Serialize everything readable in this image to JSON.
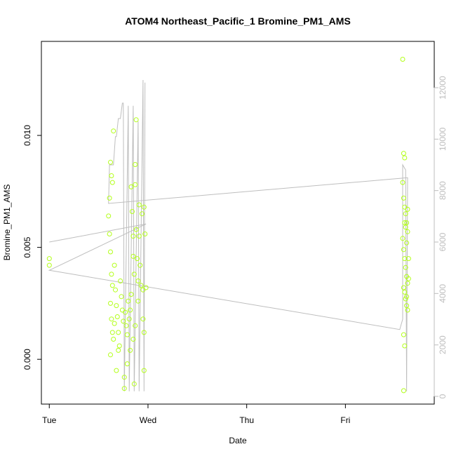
{
  "chart_data": {
    "type": "scatter",
    "title": "ATOM4 Northeast_Pacific_1 Bromine_PM1_AMS",
    "xlabel": "Date",
    "ylabel": "Bromine_PM1_AMS",
    "x_tick_labels": [
      "Tue",
      "Wed",
      "Thu",
      "Fri"
    ],
    "x_range_days": [
      -0.08,
      3.9
    ],
    "ylim": [
      -0.002,
      0.0142
    ],
    "y_ticks": [
      0.0,
      0.005,
      0.01
    ],
    "y_tick_labels": [
      "0.000",
      "0.005",
      "0.010"
    ],
    "y2lim": [
      -300,
      13800
    ],
    "y2_ticks": [
      0,
      2000,
      4000,
      6000,
      8000,
      10000,
      12000
    ],
    "grid": false,
    "legend": "none",
    "colors": {
      "points": "#b3ff1a",
      "line": "#bebebe",
      "frame": "#000000",
      "right_axis": "#bdbdbd"
    },
    "series": [
      {
        "type": "scatter",
        "axis": "left",
        "points": [
          [
            0.0,
            0.0045
          ],
          [
            0.0,
            0.0042
          ],
          [
            0.6,
            0.0064
          ],
          [
            0.61,
            0.0072
          ],
          [
            0.62,
            0.0088
          ],
          [
            0.63,
            0.0082
          ],
          [
            0.64,
            0.0079
          ],
          [
            0.65,
            0.0102
          ],
          [
            0.61,
            0.0056
          ],
          [
            0.62,
            0.0048
          ],
          [
            0.63,
            0.0038
          ],
          [
            0.64,
            0.0033
          ],
          [
            0.62,
            0.0025
          ],
          [
            0.63,
            0.0018
          ],
          [
            0.64,
            0.0012
          ],
          [
            0.65,
            0.0009
          ],
          [
            0.62,
            0.0002
          ],
          [
            0.66,
            0.0042
          ],
          [
            0.67,
            0.0031
          ],
          [
            0.68,
            0.0024
          ],
          [
            0.69,
            0.0019
          ],
          [
            0.7,
            0.0012
          ],
          [
            0.71,
            0.0006
          ],
          [
            0.68,
            -0.0005
          ],
          [
            0.72,
            0.0035
          ],
          [
            0.73,
            0.0028
          ],
          [
            0.74,
            0.0022
          ],
          [
            0.75,
            0.0017
          ],
          [
            0.76,
            -0.0013
          ],
          [
            0.76,
            -0.0008
          ],
          [
            0.77,
            0.0021
          ],
          [
            0.78,
            0.0015
          ],
          [
            0.79,
            0.0011
          ],
          [
            0.8,
            0.0026
          ],
          [
            0.81,
            0.0018
          ],
          [
            0.82,
            0.0022
          ],
          [
            0.83,
            0.0029
          ],
          [
            0.83,
            0.0077
          ],
          [
            0.84,
            0.0066
          ],
          [
            0.85,
            0.0055
          ],
          [
            0.85,
            0.0046
          ],
          [
            0.86,
            0.0038
          ],
          [
            0.86,
            -0.0011
          ],
          [
            0.87,
            0.0078
          ],
          [
            0.87,
            0.0087
          ],
          [
            0.88,
            0.0107
          ],
          [
            0.88,
            0.0058
          ],
          [
            0.89,
            0.0045
          ],
          [
            0.9,
            0.0035
          ],
          [
            0.9,
            0.0026
          ],
          [
            0.91,
            0.0069
          ],
          [
            0.91,
            0.0055
          ],
          [
            0.92,
            0.0042
          ],
          [
            0.93,
            0.0033
          ],
          [
            0.94,
            0.0065
          ],
          [
            0.95,
            0.0031
          ],
          [
            0.95,
            0.0018
          ],
          [
            0.96,
            0.0012
          ],
          [
            0.96,
            0.0068
          ],
          [
            0.97,
            0.0056
          ],
          [
            0.98,
            0.0032
          ],
          [
            0.96,
            -0.0005
          ],
          [
            0.87,
            0.0015
          ],
          [
            0.85,
            0.0009
          ],
          [
            0.82,
            0.0004
          ],
          [
            0.79,
            -0.0002
          ],
          [
            0.7,
            0.0004
          ],
          [
            0.66,
            0.0016
          ],
          [
            3.58,
            0.0134
          ],
          [
            3.59,
            0.0092
          ],
          [
            3.6,
            0.009
          ],
          [
            3.58,
            0.0079
          ],
          [
            3.59,
            0.0072
          ],
          [
            3.6,
            0.0068
          ],
          [
            3.61,
            0.0065
          ],
          [
            3.62,
            0.0061
          ],
          [
            3.63,
            0.0057
          ],
          [
            3.58,
            0.0054
          ],
          [
            3.59,
            0.0049
          ],
          [
            3.6,
            0.0045
          ],
          [
            3.61,
            0.0041
          ],
          [
            3.62,
            0.0037
          ],
          [
            3.63,
            0.0034
          ],
          [
            3.59,
            0.0032
          ],
          [
            3.6,
            0.003
          ],
          [
            3.61,
            0.0027
          ],
          [
            3.62,
            0.0024
          ],
          [
            3.63,
            0.0022
          ],
          [
            3.59,
            0.0011
          ],
          [
            3.6,
            0.0006
          ],
          [
            3.59,
            -0.0014
          ],
          [
            3.64,
            0.0045
          ],
          [
            3.64,
            0.0036
          ],
          [
            3.62,
            0.0052
          ],
          [
            3.61,
            0.0059
          ],
          [
            3.63,
            0.0067
          ],
          [
            3.6,
            0.0061
          ],
          [
            3.62,
            0.0028
          ]
        ]
      },
      {
        "type": "line",
        "axis": "right",
        "points": [
          [
            0.0,
            6000
          ],
          [
            0.98,
            6700
          ],
          [
            0.0,
            4900
          ],
          [
            3.55,
            2600
          ],
          [
            3.58,
            3000
          ],
          [
            3.58,
            9000
          ],
          [
            3.61,
            8800
          ],
          [
            3.62,
            200
          ],
          [
            3.63,
            8500
          ],
          [
            0.6,
            7500
          ],
          [
            0.61,
            9000
          ],
          [
            0.65,
            9000
          ],
          [
            0.67,
            10100
          ],
          [
            0.68,
            10100
          ],
          [
            0.7,
            10800
          ],
          [
            0.72,
            10800
          ],
          [
            0.74,
            11400
          ],
          [
            0.75,
            11400
          ],
          [
            0.76,
            200
          ],
          [
            0.8,
            11300
          ],
          [
            0.81,
            200
          ],
          [
            0.85,
            11300
          ],
          [
            0.86,
            200
          ],
          [
            0.9,
            10700
          ],
          [
            0.91,
            200
          ],
          [
            0.95,
            12300
          ],
          [
            0.96,
            200
          ],
          [
            0.97,
            12200
          ]
        ]
      }
    ]
  }
}
